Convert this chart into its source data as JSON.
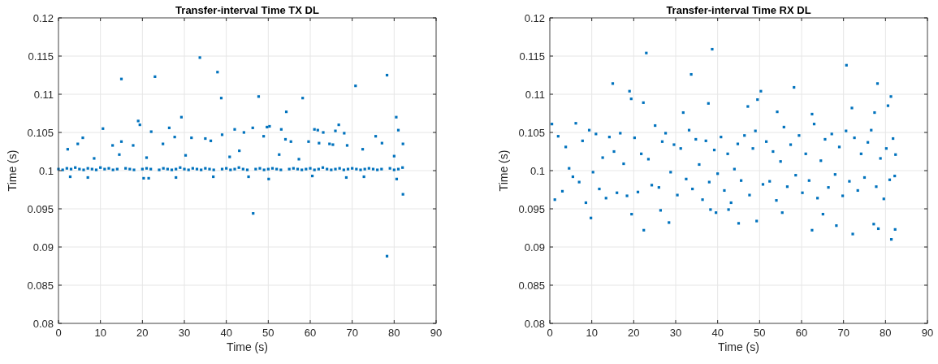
{
  "chart_data": [
    {
      "type": "scatter",
      "title": "Transfer-interval Time TX DL",
      "xlabel": "Time (s)",
      "ylabel": "Time (s)",
      "xlim": [
        0,
        90
      ],
      "ylim": [
        0.08,
        0.12
      ],
      "xticks": [
        0,
        10,
        20,
        30,
        40,
        50,
        60,
        70,
        80,
        90
      ],
      "yticks": [
        0.08,
        0.085,
        0.09,
        0.095,
        0.1,
        0.105,
        0.11,
        0.115,
        0.12
      ],
      "grid": true,
      "marker": "square",
      "series": [
        {
          "color": "#0072bd",
          "x": [
            15,
            23,
            33.7,
            37.9,
            38.8,
            47.7,
            58.2,
            70.8,
            78.3,
            54.3,
            29.3,
            19,
            19.4,
            10.6,
            80.5,
            81,
            42,
            26.4,
            44.2,
            46.3,
            49.7,
            50.3,
            53.1,
            61,
            61.8,
            63.1,
            66,
            66.8,
            68.1,
            22.1,
            46.4,
            78.3,
            82.1,
            75.6,
            5.8,
            35,
            31.7,
            27.7,
            39,
            48.9,
            59.6,
            65.4,
            4.6,
            12.9,
            15,
            24.9,
            36.3,
            54.1,
            55.4,
            62.1,
            64.6,
            77.1,
            82.1,
            68.8,
            17.8,
            2.2,
            8.5,
            14.5,
            21,
            30.3,
            40.8,
            43.1,
            52.6,
            57.3,
            72.5,
            80,
            0,
            1,
            2,
            3,
            4,
            5,
            6,
            7,
            8,
            9,
            10,
            11,
            12,
            13,
            14,
            16,
            17,
            18,
            20,
            21,
            22,
            24,
            25,
            26,
            27,
            28,
            29,
            30,
            31,
            32,
            33,
            34,
            35,
            36,
            37,
            39,
            40,
            41,
            42,
            43,
            44,
            45,
            47,
            48,
            49,
            50,
            51,
            52,
            53,
            55,
            56,
            57,
            58,
            59,
            60,
            61,
            62,
            63,
            64,
            65,
            66,
            67,
            68,
            69,
            70,
            71,
            72,
            73,
            74,
            75,
            76,
            77,
            79,
            80,
            81,
            82,
            2.8,
            7,
            20.3,
            21.5,
            28,
            36.9,
            45.3,
            50.1,
            60.5,
            68.6,
            72.8,
            80.6
          ],
          "values": [
            0.112,
            0.1123,
            0.1148,
            0.1129,
            0.1095,
            0.1097,
            0.1095,
            0.1111,
            0.1125,
            0.1077,
            0.107,
            0.1065,
            0.106,
            0.1055,
            0.107,
            0.1053,
            0.1054,
            0.1056,
            0.105,
            0.1056,
            0.1057,
            0.1058,
            0.1054,
            0.1054,
            0.1053,
            0.105,
            0.1052,
            0.106,
            0.1049,
            0.1051,
            0.0944,
            0.0888,
            0.0969,
            0.1045,
            0.1043,
            0.1042,
            0.1043,
            0.1044,
            0.1047,
            0.1045,
            0.1038,
            0.1034,
            0.1035,
            0.1033,
            0.1038,
            0.1035,
            0.1039,
            0.1041,
            0.1038,
            0.1036,
            0.1035,
            0.1036,
            0.1035,
            0.1033,
            0.1033,
            0.1028,
            0.1016,
            0.1021,
            0.1017,
            0.102,
            0.1018,
            0.1026,
            0.1021,
            0.1015,
            0.1028,
            0.1019,
            0.1002,
            0.1001,
            0.1003,
            0.1002,
            0.1004,
            0.1002,
            0.1001,
            0.1003,
            0.1002,
            0.1001,
            0.1004,
            0.1002,
            0.1003,
            0.1001,
            0.1002,
            0.1003,
            0.1002,
            0.1001,
            0.1002,
            0.1003,
            0.1002,
            0.1001,
            0.1003,
            0.1002,
            0.1001,
            0.1002,
            0.1004,
            0.1002,
            0.1001,
            0.1003,
            0.1002,
            0.1001,
            0.1003,
            0.1002,
            0.1001,
            0.1002,
            0.1003,
            0.1001,
            0.1002,
            0.1004,
            0.1002,
            0.1001,
            0.1002,
            0.1003,
            0.1001,
            0.1002,
            0.1003,
            0.1002,
            0.1001,
            0.1002,
            0.1003,
            0.1002,
            0.1001,
            0.1002,
            0.1003,
            0.1001,
            0.1002,
            0.1004,
            0.1002,
            0.1001,
            0.1002,
            0.1003,
            0.1001,
            0.1002,
            0.1003,
            0.1002,
            0.1001,
            0.1002,
            0.1003,
            0.1002,
            0.1001,
            0.1002,
            0.1003,
            0.1001,
            0.1002,
            0.1004,
            0.0992,
            0.0991,
            0.099,
            0.099,
            0.0991,
            0.0992,
            0.0992,
            0.0989,
            0.0993,
            0.0991,
            0.0992,
            0.0989
          ]
        }
      ]
    },
    {
      "type": "scatter",
      "title": "Transfer-interval Time RX DL",
      "xlabel": "Time (s)",
      "ylabel": "Time (s)",
      "xlim": [
        0,
        90
      ],
      "ylim": [
        0.08,
        0.12
      ],
      "xticks": [
        0,
        10,
        20,
        30,
        40,
        50,
        60,
        70,
        80,
        90
      ],
      "yticks": [
        0.08,
        0.085,
        0.09,
        0.095,
        0.1,
        0.105,
        0.11,
        0.115,
        0.12
      ],
      "grid": true,
      "marker": "square",
      "series": [
        {
          "color": "#0072bd",
          "x": [
            15,
            19,
            19.4,
            22.3,
            23,
            33.7,
            37.8,
            38.7,
            31.8,
            49.5,
            50.3,
            58.2,
            70.7,
            78.1,
            81.3,
            80.6,
            72,
            47.2,
            62.5,
            77.4,
            54.2,
            9.8,
            19.5,
            22.4,
            28.4,
            45,
            49.3,
            55.4,
            62.5,
            65.1,
            68.3,
            72.2,
            77.2,
            78.3,
            81.4,
            82.3,
            39.6,
            26.4,
            38.3,
            42.6,
            0.5,
            1.2,
            2,
            3,
            3.8,
            4.6,
            5.5,
            6.2,
            7,
            7.8,
            8.6,
            9.4,
            10.3,
            11,
            11.8,
            12.6,
            13.4,
            14.2,
            15.3,
            16,
            16.8,
            17.6,
            18.4,
            20.2,
            21,
            21.8,
            23.5,
            24.3,
            25.1,
            26,
            26.8,
            27.6,
            28.8,
            29.6,
            30.4,
            31.2,
            32.5,
            33.2,
            34,
            34.8,
            35.6,
            36.4,
            37.2,
            38,
            39.2,
            40,
            40.8,
            41.6,
            42.4,
            43.2,
            44,
            44.8,
            45.6,
            46.4,
            47.6,
            48.4,
            49,
            50.8,
            51.6,
            52.4,
            53.2,
            54,
            55,
            55.8,
            56.6,
            57.4,
            58.6,
            59.4,
            60.2,
            61,
            61.8,
            63,
            63.8,
            64.6,
            65.6,
            66.4,
            67.2,
            68,
            69,
            69.8,
            70.6,
            71.4,
            72.6,
            73.4,
            74.2,
            75,
            75.8,
            76.6,
            77.8,
            78.8,
            79.6,
            80.2,
            81,
            81.8,
            82.2,
            82.4
          ],
          "values": [
            0.1114,
            0.1104,
            0.1094,
            0.1089,
            0.1154,
            0.1126,
            0.1088,
            0.1159,
            0.1076,
            0.1093,
            0.1104,
            0.1109,
            0.1138,
            0.1114,
            0.1097,
            0.1085,
            0.1082,
            0.1084,
            0.1074,
            0.1076,
            0.1077,
            0.0938,
            0.0943,
            0.0922,
            0.0932,
            0.0931,
            0.0934,
            0.0945,
            0.0922,
            0.0943,
            0.0928,
            0.0917,
            0.093,
            0.0924,
            0.091,
            0.0923,
            0.0945,
            0.0948,
            0.0949,
            0.0949,
            0.1061,
            0.0962,
            0.1045,
            0.0973,
            0.1031,
            0.1003,
            0.0992,
            0.1062,
            0.0985,
            0.1039,
            0.0958,
            0.1053,
            0.0998,
            0.1048,
            0.0976,
            0.1017,
            0.0964,
            0.1044,
            0.1025,
            0.0971,
            0.1049,
            0.1009,
            0.0967,
            0.1043,
            0.0972,
            0.1022,
            0.1015,
            0.0981,
            0.1059,
            0.0978,
            0.1038,
            0.1049,
            0.0998,
            0.1034,
            0.0968,
            0.1029,
            0.0989,
            0.1053,
            0.0976,
            0.1041,
            0.1008,
            0.0962,
            0.1039,
            0.0985,
            0.1027,
            0.0996,
            0.1044,
            0.0974,
            0.1022,
            0.0958,
            0.1002,
            0.1035,
            0.0987,
            0.1046,
            0.0968,
            0.1029,
            0.1052,
            0.0982,
            0.1038,
            0.0986,
            0.1025,
            0.0961,
            0.1012,
            0.1057,
            0.0979,
            0.1034,
            0.0994,
            0.1046,
            0.0971,
            0.1022,
            0.0987,
            0.1061,
            0.0964,
            0.1013,
            0.1041,
            0.0978,
            0.1048,
            0.0995,
            0.1031,
            0.0967,
            0.1052,
            0.0986,
            0.1043,
            0.0974,
            0.1022,
            0.0991,
            0.1037,
            0.1053,
            0.0979,
            0.1016,
            0.0963,
            0.1029,
            0.0988,
            0.1042,
            0.0993,
            0.1021
          ]
        }
      ]
    }
  ]
}
